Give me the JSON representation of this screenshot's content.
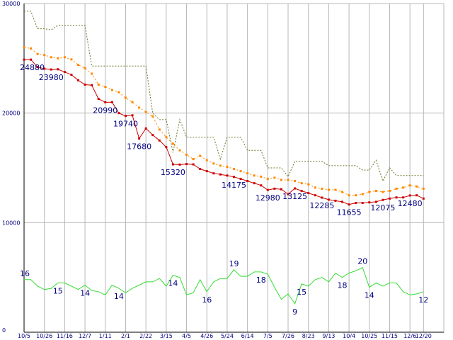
{
  "chart_data": {
    "type": "line",
    "title": "",
    "xlabel": "",
    "ylabel": "",
    "ylim": [
      0,
      30000
    ],
    "yticks": [
      0,
      10000,
      20000,
      30000
    ],
    "xlim": [
      0,
      62
    ],
    "grid": true,
    "xticks": [
      {
        "i": 0,
        "label": "10/5"
      },
      {
        "i": 3,
        "label": "10/26"
      },
      {
        "i": 6,
        "label": "11/16"
      },
      {
        "i": 9,
        "label": "12/7"
      },
      {
        "i": 12,
        "label": "1/11"
      },
      {
        "i": 15,
        "label": "2/1"
      },
      {
        "i": 18,
        "label": "2/22"
      },
      {
        "i": 21,
        "label": "3/15"
      },
      {
        "i": 24,
        "label": "4/5"
      },
      {
        "i": 27,
        "label": "4/26"
      },
      {
        "i": 30,
        "label": "5/24"
      },
      {
        "i": 33,
        "label": "6/14"
      },
      {
        "i": 36,
        "label": "7/5"
      },
      {
        "i": 39,
        "label": "7/26"
      },
      {
        "i": 42,
        "label": "8/23"
      },
      {
        "i": 45,
        "label": "9/13"
      },
      {
        "i": 48,
        "label": "10/4"
      },
      {
        "i": 51,
        "label": "10/25"
      },
      {
        "i": 54,
        "label": "11/15"
      },
      {
        "i": 57,
        "label": "12/6"
      },
      {
        "i": 59,
        "label": "12/20"
      }
    ],
    "series": [
      {
        "color": "#cc0000",
        "style": "solid-square-markers",
        "values": [
          24880,
          24880,
          24200,
          24050,
          23980,
          24000,
          23750,
          23500,
          23000,
          22600,
          22550,
          21300,
          20990,
          21000,
          20000,
          19740,
          19800,
          17680,
          18600,
          18000,
          17500,
          16900,
          15320,
          15300,
          15350,
          15320,
          14900,
          14700,
          14500,
          14400,
          14300,
          14175,
          14000,
          13800,
          13600,
          13400,
          12980,
          13100,
          13050,
          12600,
          13125,
          12900,
          12700,
          12500,
          12285,
          12100,
          12000,
          11900,
          11655,
          11800,
          11800,
          11850,
          11900,
          12075,
          12200,
          12300,
          12300,
          12480,
          12500,
          12200
        ]
      },
      {
        "color": "#ff8800",
        "style": "dotted-square-markers",
        "values": [
          26000,
          25900,
          25400,
          25300,
          25100,
          25000,
          25100,
          24900,
          24400,
          24100,
          23600,
          22600,
          22400,
          22100,
          21900,
          21400,
          21000,
          20500,
          20100,
          19700,
          18500,
          17800,
          17200,
          16600,
          16200,
          15800,
          16100,
          15700,
          15400,
          15200,
          15100,
          14900,
          14700,
          14500,
          14300,
          14200,
          14000,
          14100,
          13900,
          13900,
          13800,
          13600,
          13500,
          13200,
          13100,
          13000,
          13000,
          12800,
          12500,
          12500,
          12600,
          12800,
          12900,
          12800,
          12900,
          13100,
          13200,
          13400,
          13300,
          13100
        ]
      },
      {
        "color": "#667722",
        "style": "dashed",
        "values": [
          29300,
          29300,
          27700,
          27700,
          27600,
          28000,
          28000,
          28000,
          28000,
          28000,
          24300,
          24300,
          24300,
          24300,
          24300,
          24300,
          24300,
          24300,
          24300,
          20000,
          19400,
          19400,
          16400,
          19400,
          17800,
          17800,
          17800,
          17800,
          17800,
          15800,
          17800,
          17800,
          17800,
          16600,
          16600,
          16600,
          15000,
          15000,
          15000,
          14200,
          15600,
          15600,
          15600,
          15600,
          15600,
          15200,
          15200,
          15200,
          15200,
          15200,
          14800,
          14800,
          15700,
          13800,
          15000,
          14300,
          14300,
          14300,
          14300,
          14300
        ]
      },
      {
        "color": "#33dd33",
        "style": "solid",
        "values": [
          4800,
          4800,
          4200,
          3900,
          4000,
          4500,
          4500,
          4200,
          3900,
          4300,
          3800,
          3700,
          3400,
          4300,
          4000,
          3600,
          4000,
          4300,
          4600,
          4600,
          4900,
          4200,
          5200,
          5000,
          3400,
          3600,
          4800,
          3700,
          4600,
          4900,
          4900,
          5700,
          5100,
          5100,
          5500,
          5500,
          5300,
          4100,
          3000,
          3500,
          2600,
          4400,
          4200,
          4800,
          5000,
          4600,
          5400,
          5000,
          5400,
          5600,
          5900,
          4100,
          4500,
          4200,
          4500,
          4500,
          3700,
          3400,
          3500,
          3700
        ]
      }
    ],
    "annotations": [
      {
        "series": 0,
        "i": 0,
        "text": "24880",
        "pos": "below"
      },
      {
        "series": 0,
        "i": 4,
        "text": "23980",
        "pos": "below"
      },
      {
        "series": 0,
        "i": 12,
        "text": "20990",
        "pos": "below"
      },
      {
        "series": 0,
        "i": 15,
        "text": "19740",
        "pos": "below"
      },
      {
        "series": 0,
        "i": 17,
        "text": "17680",
        "pos": "below"
      },
      {
        "series": 0,
        "i": 22,
        "text": "15320",
        "pos": "below"
      },
      {
        "series": 0,
        "i": 31,
        "text": "14175",
        "pos": "below"
      },
      {
        "series": 0,
        "i": 36,
        "text": "12980",
        "pos": "below"
      },
      {
        "series": 0,
        "i": 40,
        "text": "13125",
        "pos": "below"
      },
      {
        "series": 0,
        "i": 44,
        "text": "12285",
        "pos": "below"
      },
      {
        "series": 0,
        "i": 48,
        "text": "11655",
        "pos": "below"
      },
      {
        "series": 0,
        "i": 53,
        "text": "12075",
        "pos": "below"
      },
      {
        "series": 0,
        "i": 57,
        "text": "12480",
        "pos": "below"
      },
      {
        "series": 3,
        "i": 0,
        "text": "16",
        "pos": "above"
      },
      {
        "series": 3,
        "i": 5,
        "text": "15",
        "pos": "below"
      },
      {
        "series": 3,
        "i": 9,
        "text": "14",
        "pos": "below"
      },
      {
        "series": 3,
        "i": 14,
        "text": "14",
        "pos": "below"
      },
      {
        "series": 3,
        "i": 22,
        "text": "14",
        "pos": "below"
      },
      {
        "series": 3,
        "i": 27,
        "text": "16",
        "pos": "below"
      },
      {
        "series": 3,
        "i": 31,
        "text": "19",
        "pos": "above"
      },
      {
        "series": 3,
        "i": 35,
        "text": "18",
        "pos": "below"
      },
      {
        "series": 3,
        "i": 40,
        "text": "9",
        "pos": "below"
      },
      {
        "series": 3,
        "i": 41,
        "text": "15",
        "pos": "below"
      },
      {
        "series": 3,
        "i": 47,
        "text": "18",
        "pos": "below"
      },
      {
        "series": 3,
        "i": 50,
        "text": "20",
        "pos": "above"
      },
      {
        "series": 3,
        "i": 51,
        "text": "14",
        "pos": "below"
      },
      {
        "series": 3,
        "i": 59,
        "text": "12",
        "pos": "below"
      }
    ]
  }
}
